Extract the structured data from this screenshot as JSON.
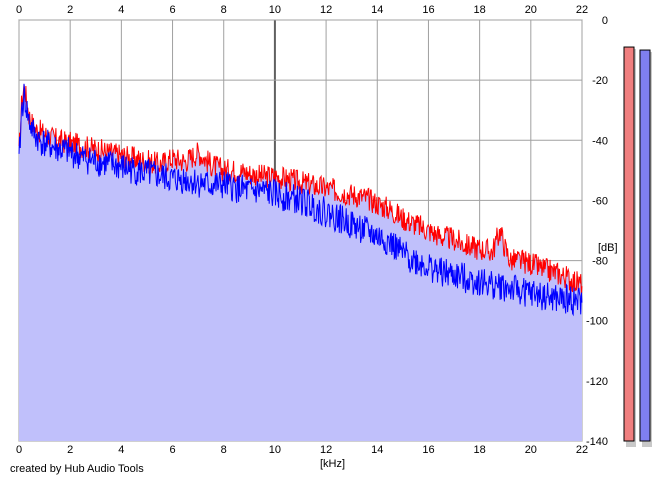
{
  "chart_data": {
    "type": "area",
    "xlabel": "[kHz]",
    "ylabel": "[dB]",
    "xlim": [
      0,
      22
    ],
    "ylim": [
      -140,
      0
    ],
    "x_ticks": [
      0,
      2,
      4,
      6,
      8,
      10,
      12,
      14,
      16,
      18,
      20,
      22
    ],
    "y_ticks": [
      0,
      -20,
      -40,
      -60,
      -80,
      -100,
      -120,
      -140
    ],
    "grid": true,
    "series": [
      {
        "color": "#ff0000",
        "x": [
          0,
          0.1,
          0.2,
          0.4,
          0.6,
          0.8,
          1,
          1.5,
          2,
          2.5,
          3,
          3.5,
          4,
          4.5,
          5,
          5.5,
          6,
          6.5,
          7,
          7.5,
          8,
          8.5,
          9,
          9.5,
          10,
          10.5,
          11,
          11.5,
          12,
          12.5,
          13,
          13.5,
          14,
          14.5,
          15,
          15.5,
          16,
          16.5,
          17,
          17.5,
          18,
          18.5,
          18.8,
          19,
          19.2,
          19.5,
          20,
          20.5,
          21,
          21.5,
          22
        ],
        "values": [
          -45,
          -28,
          -22,
          -32,
          -36,
          -37,
          -38,
          -40,
          -41,
          -42,
          -43,
          -44,
          -45,
          -46,
          -47,
          -48,
          -46,
          -47,
          -44,
          -48,
          -50,
          -50,
          -51,
          -52,
          -52,
          -53,
          -54,
          -55,
          -56,
          -57,
          -58,
          -59,
          -61,
          -63,
          -66,
          -68,
          -70,
          -72,
          -73,
          -75,
          -76,
          -77,
          -70,
          -76,
          -80,
          -80,
          -81,
          -83,
          -84,
          -86,
          -88
        ]
      },
      {
        "color": "#0000ff",
        "x": [
          0,
          0.1,
          0.2,
          0.4,
          0.6,
          0.8,
          1,
          1.5,
          2,
          2.5,
          3,
          3.5,
          4,
          4.5,
          5,
          5.5,
          6,
          6.5,
          7,
          7.5,
          8,
          8.5,
          9,
          9.5,
          10,
          10.5,
          11,
          11.5,
          12,
          12.5,
          13,
          13.5,
          14,
          14.5,
          15,
          15.5,
          16,
          16.5,
          17,
          17.5,
          18,
          18.5,
          19,
          19.5,
          20,
          20.5,
          21,
          21.5,
          22
        ],
        "values": [
          -48,
          -30,
          -25,
          -34,
          -38,
          -40,
          -41,
          -43,
          -44,
          -46,
          -47,
          -48,
          -49,
          -50,
          -51,
          -52,
          -53,
          -53,
          -54,
          -55,
          -55,
          -56,
          -57,
          -57,
          -58,
          -59,
          -60,
          -62,
          -64,
          -66,
          -68,
          -70,
          -72,
          -74,
          -78,
          -80,
          -82,
          -84,
          -85,
          -86,
          -87,
          -88,
          -89,
          -90,
          -91,
          -92,
          -93,
          -93,
          -94
        ]
      }
    ],
    "fill_color": "#c0c0fb",
    "level_meters": [
      {
        "color": "#f07f7f",
        "level_db": -5
      },
      {
        "color": "#7f7ff0",
        "level_db": -6
      }
    ]
  },
  "credit": "created by Hub Audio Tools"
}
